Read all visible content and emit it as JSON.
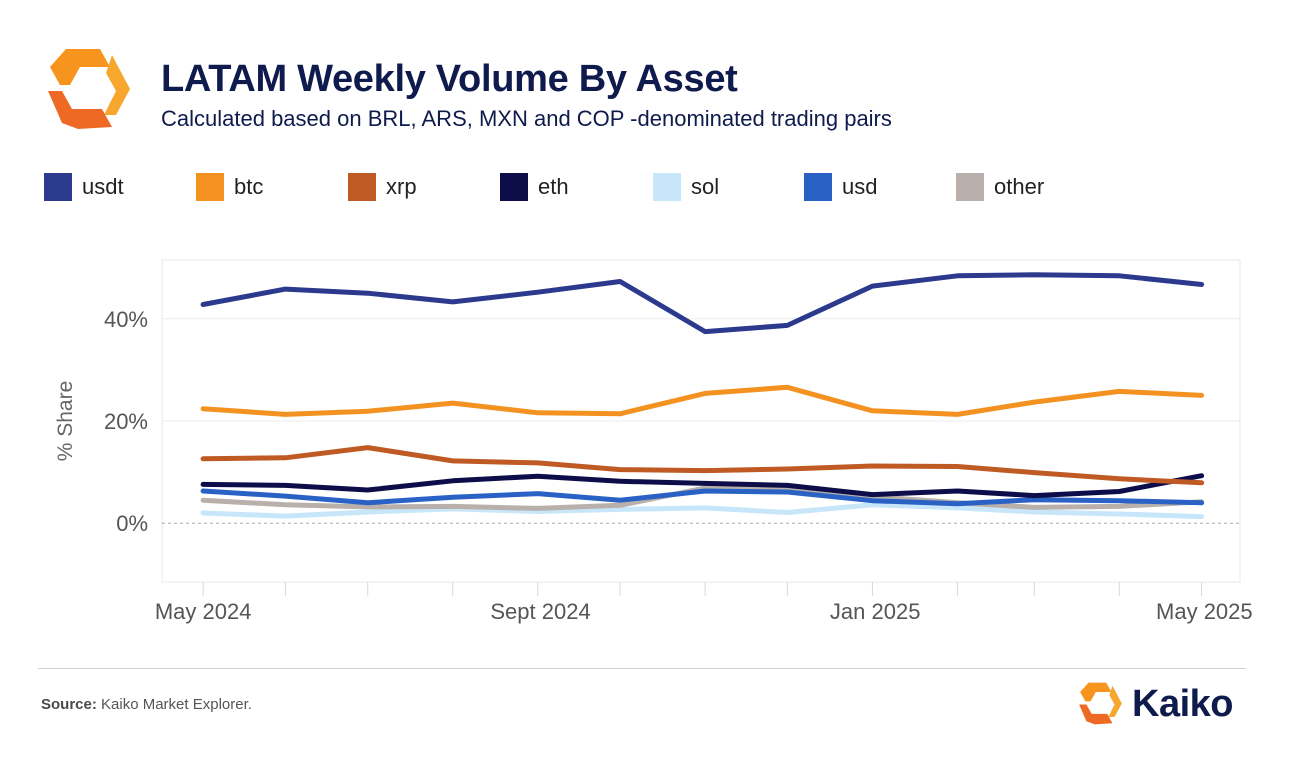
{
  "header": {
    "title": "LATAM Weekly Volume By Asset",
    "subtitle": "Calculated based on BRL, ARS, MXN and COP -denominated trading pairs"
  },
  "footer": {
    "source_label": "Source:",
    "source_text": "Kaiko Market Explorer.",
    "brand": "Kaiko"
  },
  "colors": {
    "logo_orange": "#f7941d",
    "logo_dark_orange": "#ee6a24",
    "usdt": "#2b3a8c",
    "btc": "#f39220",
    "xrp": "#bf5a24",
    "eth": "#0d0d4a",
    "sol": "#c8e6fa",
    "usd": "#2962c4",
    "other": "#b9b0ab"
  },
  "chart_data": {
    "type": "line",
    "ylabel": "% Share",
    "xlabel": "",
    "ylim": [
      -11.5,
      51.5
    ],
    "yticks": [
      0,
      20,
      40
    ],
    "ytick_labels": [
      "0%",
      "20%",
      "40%"
    ],
    "xlim": [
      "2024-04-16",
      "2025-05-14"
    ],
    "xticks": [
      "2024-05-01",
      "2024-09-01",
      "2025-01-01",
      "2025-05-01"
    ],
    "xtick_labels": [
      "May 2024",
      "Sept 2024",
      "Jan 2025",
      "May 2025"
    ],
    "grid": true,
    "legend_position": "top",
    "x": [
      "2024-05-01",
      "2024-05-31",
      "2024-06-30",
      "2024-07-31",
      "2024-08-31",
      "2024-09-30",
      "2024-10-31",
      "2024-11-30",
      "2024-12-31",
      "2025-01-31",
      "2025-02-28",
      "2025-03-31",
      "2025-04-30"
    ],
    "series": [
      {
        "name": "usdt",
        "values": [
          42.8,
          45.8,
          45.0,
          43.3,
          45.2,
          47.3,
          37.5,
          38.7,
          46.4,
          48.4,
          48.6,
          48.4,
          46.7
        ]
      },
      {
        "name": "btc",
        "values": [
          22.4,
          21.3,
          21.9,
          23.5,
          21.6,
          21.4,
          25.4,
          26.6,
          22.0,
          21.3,
          23.7,
          25.8,
          25.0
        ]
      },
      {
        "name": "xrp",
        "values": [
          12.6,
          12.8,
          14.8,
          12.2,
          11.8,
          10.5,
          10.3,
          10.6,
          11.2,
          11.1,
          9.9,
          8.7,
          7.9
        ]
      },
      {
        "name": "eth",
        "values": [
          7.6,
          7.4,
          6.5,
          8.3,
          9.2,
          8.2,
          7.8,
          7.4,
          5.6,
          6.3,
          5.4,
          6.2,
          9.3
        ]
      },
      {
        "name": "sol",
        "values": [
          2.0,
          1.4,
          2.2,
          2.8,
          2.3,
          2.7,
          3.0,
          2.1,
          3.6,
          3.0,
          2.2,
          1.8,
          1.3
        ]
      },
      {
        "name": "usd",
        "values": [
          6.3,
          5.3,
          4.0,
          5.1,
          5.8,
          4.5,
          6.3,
          6.1,
          4.4,
          3.8,
          4.6,
          4.4,
          4.0
        ]
      },
      {
        "name": "other",
        "values": [
          4.5,
          3.6,
          3.2,
          3.3,
          2.9,
          3.5,
          6.9,
          6.7,
          5.2,
          4.0,
          3.1,
          3.3,
          4.2
        ]
      }
    ]
  }
}
